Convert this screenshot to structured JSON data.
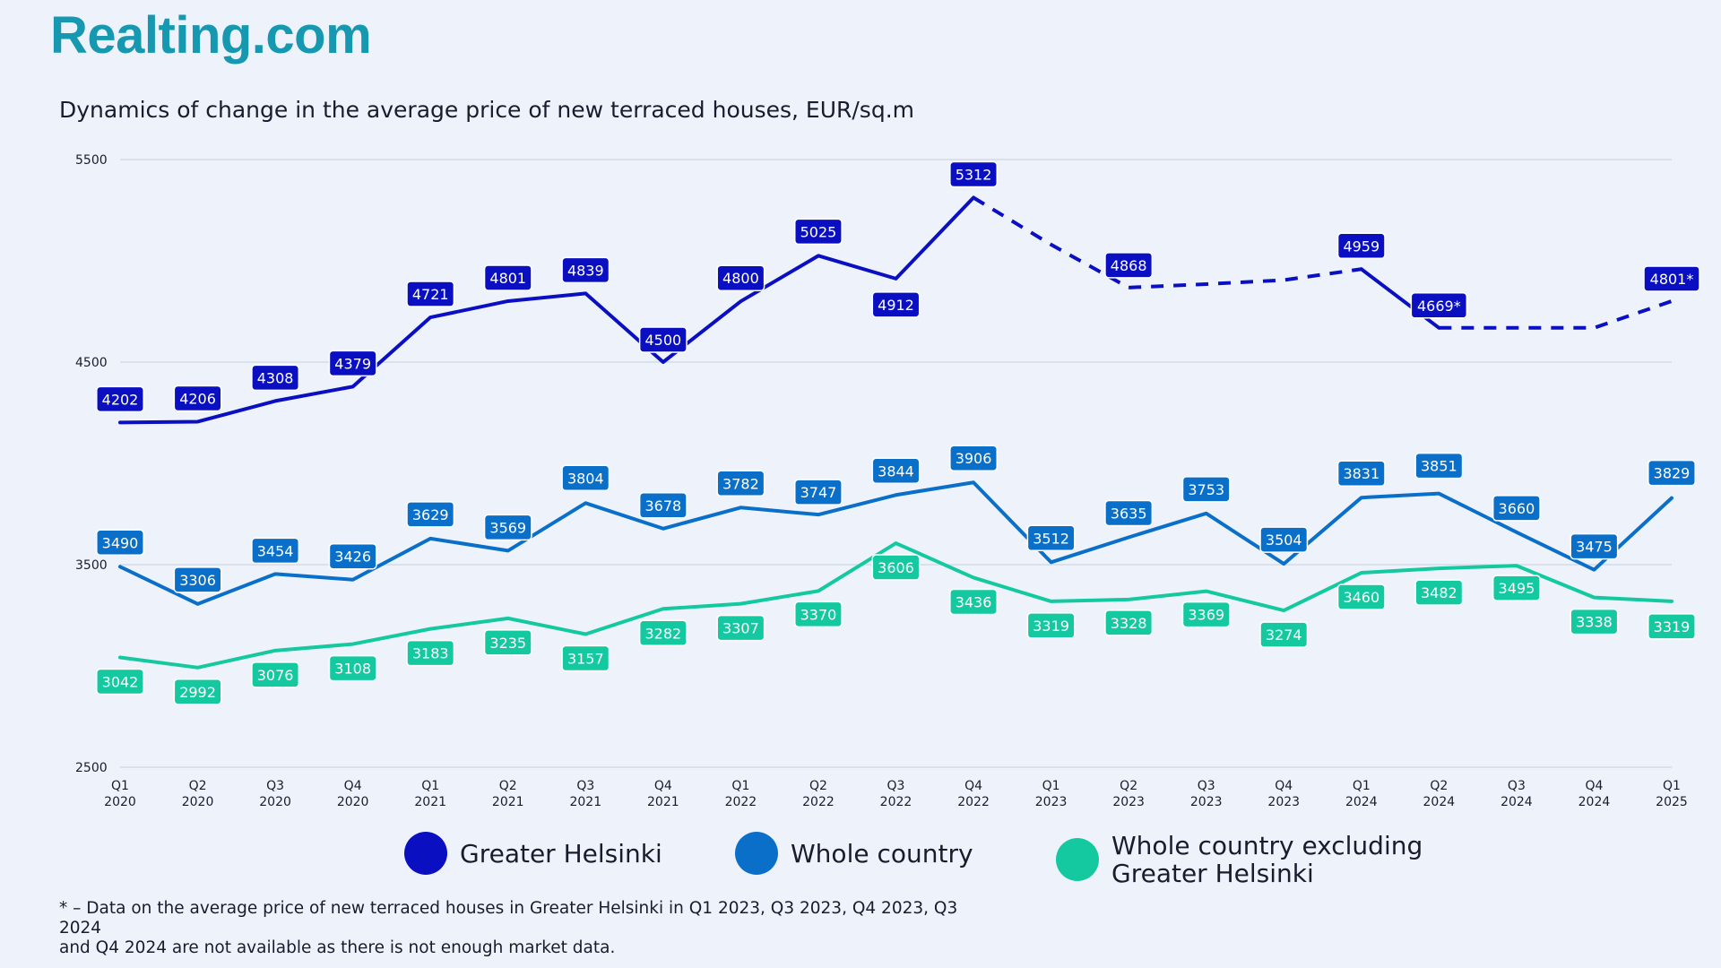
{
  "brand": {
    "logo_text": "Realting.com"
  },
  "chart_data": {
    "type": "line",
    "title": "Dynamics of change in the average price of new terraced houses, EUR/sq.m",
    "xlabel": "",
    "ylabel": "EUR/sq.m",
    "ylim": [
      2500,
      5500
    ],
    "yticks": [
      2500,
      3500,
      4500,
      5500
    ],
    "grid": true,
    "legend_position": "bottom",
    "categories": [
      {
        "q": "Q1",
        "y": "2020"
      },
      {
        "q": "Q2",
        "y": "2020"
      },
      {
        "q": "Q3",
        "y": "2020"
      },
      {
        "q": "Q4",
        "y": "2020"
      },
      {
        "q": "Q1",
        "y": "2021"
      },
      {
        "q": "Q2",
        "y": "2021"
      },
      {
        "q": "Q3",
        "y": "2021"
      },
      {
        "q": "Q4",
        "y": "2021"
      },
      {
        "q": "Q1",
        "y": "2022"
      },
      {
        "q": "Q2",
        "y": "2022"
      },
      {
        "q": "Q3",
        "y": "2022"
      },
      {
        "q": "Q4",
        "y": "2022"
      },
      {
        "q": "Q1",
        "y": "2023"
      },
      {
        "q": "Q2",
        "y": "2023"
      },
      {
        "q": "Q3",
        "y": "2023"
      },
      {
        "q": "Q4",
        "y": "2023"
      },
      {
        "q": "Q1",
        "y": "2024"
      },
      {
        "q": "Q2",
        "y": "2024"
      },
      {
        "q": "Q3",
        "y": "2024"
      },
      {
        "q": "Q4",
        "y": "2024"
      },
      {
        "q": "Q1",
        "y": "2025"
      }
    ],
    "series": [
      {
        "name": "Greater Helsinki",
        "color": "#0a0fc2",
        "values": [
          4202,
          4206,
          4308,
          4379,
          4721,
          4801,
          4839,
          4500,
          4800,
          5025,
          4912,
          5312,
          null,
          4868,
          null,
          null,
          4959,
          4669,
          null,
          null,
          4801
        ],
        "labels": [
          "4202",
          "4206",
          "4308",
          "4379",
          "4721",
          "4801",
          "4839",
          "4500",
          "4800",
          "5025",
          "4912",
          "5312",
          "",
          "4868",
          "",
          "",
          "4959",
          "4669*",
          "",
          "",
          "4801*"
        ],
        "estimated_gaps": [
          11,
          12,
          13,
          14,
          15,
          16,
          17,
          18,
          19,
          20
        ]
      },
      {
        "name": "Whole country",
        "color": "#0a6fc9",
        "values": [
          3490,
          3306,
          3454,
          3426,
          3629,
          3569,
          3804,
          3678,
          3782,
          3747,
          3844,
          3906,
          3512,
          3635,
          3753,
          3504,
          3831,
          3851,
          3660,
          3475,
          3829
        ],
        "labels": [
          "3490",
          "3306",
          "3454",
          "3426",
          "3629",
          "3569",
          "3804",
          "3678",
          "3782",
          "3747",
          "3844",
          "3906",
          "3512",
          "3635",
          "3753",
          "3504",
          "3831",
          "3851",
          "3660",
          "3475",
          "3829"
        ]
      },
      {
        "name": "Whole country excluding Greater Helsinki",
        "color": "#14c9a0",
        "values": [
          3042,
          2992,
          3076,
          3108,
          3183,
          3235,
          3157,
          3282,
          3307,
          3370,
          3606,
          3436,
          3319,
          3328,
          3369,
          3274,
          3460,
          3482,
          3495,
          3338,
          3319
        ],
        "labels": [
          "3042",
          "2992",
          "3076",
          "3108",
          "3183",
          "3235",
          "3157",
          "3282",
          "3307",
          "3370",
          "3606",
          "3436",
          "3319",
          "3328",
          "3369",
          "3274",
          "3460",
          "3482",
          "3495",
          "3338",
          "3319"
        ]
      }
    ]
  },
  "legend": {
    "items": [
      {
        "label": "Greater Helsinki",
        "color": "#0a0fc2"
      },
      {
        "label": "Whole country",
        "color": "#0a6fc9"
      },
      {
        "label_line1": "Whole country excluding",
        "label_line2": "Greater Helsinki",
        "color": "#14c9a0"
      }
    ]
  },
  "footnote": {
    "line1": "* – Data on the average price of new terraced houses in Greater Helsinki in Q1 2023, Q3 2023, Q4 2023, Q3 2024",
    "line2": "and Q4 2024 are not available as there is not enough market data."
  }
}
